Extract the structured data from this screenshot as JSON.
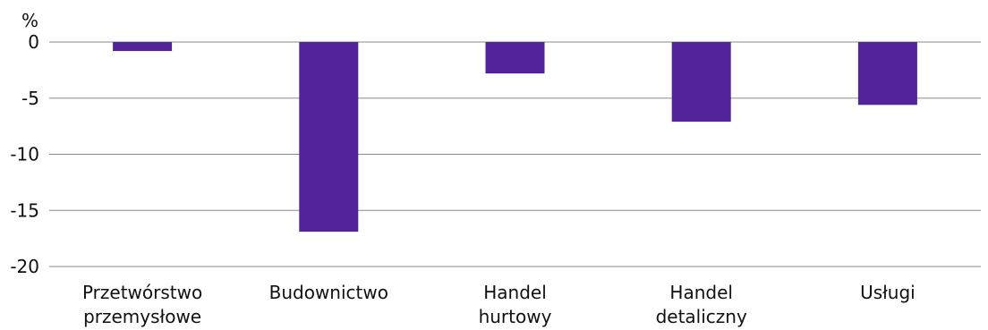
{
  "chart_data": {
    "type": "bar",
    "unit_label": "%",
    "categories": [
      [
        "Przetwórstwo",
        "przemysłowe"
      ],
      [
        "Budownictwo"
      ],
      [
        "Handel",
        "hurtowy"
      ],
      [
        "Handel",
        "detaliczny"
      ],
      [
        "Usługi"
      ]
    ],
    "values": [
      -0.8,
      -16.9,
      -2.8,
      -7.1,
      -5.6
    ],
    "ylim": [
      -20,
      0
    ],
    "yticks": [
      0,
      -5,
      -10,
      -15,
      -20
    ],
    "ytick_labels": [
      "0",
      "-5",
      "-10",
      "-15",
      "-20"
    ],
    "grid": true,
    "bar_color": "#52239a"
  }
}
